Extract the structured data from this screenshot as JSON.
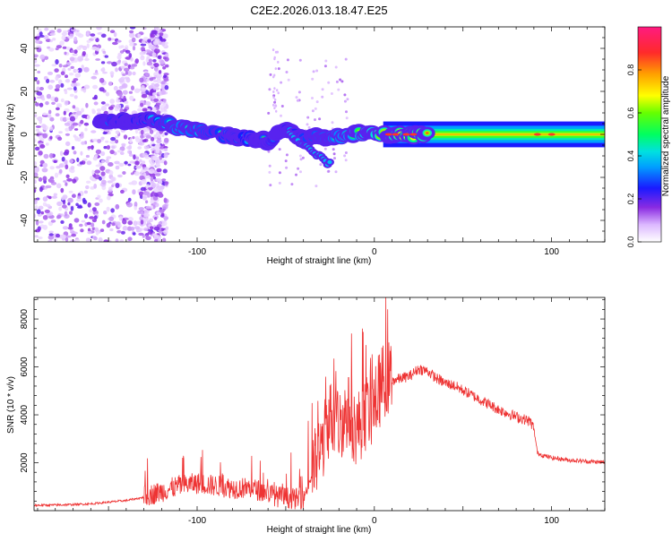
{
  "title": "C2E2.2026.013.18.47.E25",
  "chart_data": [
    {
      "type": "heatmap",
      "name": "spectrogram",
      "xlabel": "Height of straight line (km)",
      "ylabel": "Frequency (Hz)",
      "xlim": [
        -192,
        130
      ],
      "ylim": [
        -50,
        50
      ],
      "xticks": [
        -100,
        0,
        100
      ],
      "yticks": [
        -40,
        -20,
        0,
        20,
        40
      ],
      "colorbar": {
        "label": "Normalized spectral amplitude",
        "range": [
          0,
          1
        ],
        "ticks": [
          0.0,
          0.2,
          0.4,
          0.6,
          0.8
        ]
      },
      "ridge": [
        {
          "x": -150,
          "freq": 6.5,
          "amp": 0.35
        },
        {
          "x": -140,
          "freq": 6.5,
          "amp": 0.4
        },
        {
          "x": -130,
          "freq": 7.0,
          "amp": 0.4
        },
        {
          "x": -120,
          "freq": 5.5,
          "amp": 0.45
        },
        {
          "x": -110,
          "freq": 3.0,
          "amp": 0.55
        },
        {
          "x": -100,
          "freq": 2.0,
          "amp": 0.5
        },
        {
          "x": -90,
          "freq": 0.5,
          "amp": 0.45
        },
        {
          "x": -80,
          "freq": -1.0,
          "amp": 0.45
        },
        {
          "x": -70,
          "freq": -2.0,
          "amp": 0.4
        },
        {
          "x": -60,
          "freq": -3.0,
          "amp": 0.35
        },
        {
          "x": -50,
          "freq": 2.5,
          "amp": 0.4
        },
        {
          "x": -40,
          "freq": -2.0,
          "amp": 0.45
        },
        {
          "x": -30,
          "freq": -1.0,
          "amp": 0.5
        },
        {
          "x": -20,
          "freq": -1.0,
          "amp": 0.55
        },
        {
          "x": -10,
          "freq": 0.5,
          "amp": 0.6
        },
        {
          "x": 0,
          "freq": 0.5,
          "amp": 0.7
        },
        {
          "x": 10,
          "freq": 0.0,
          "amp": 0.75
        },
        {
          "x": 20,
          "freq": 0.0,
          "amp": 0.8
        },
        {
          "x": 50,
          "freq": 0.0,
          "amp": 0.6
        },
        {
          "x": 90,
          "freq": 0.0,
          "amp": 0.7
        },
        {
          "x": 130,
          "freq": 0.0,
          "amp": 0.6
        }
      ]
    },
    {
      "type": "line",
      "name": "snr",
      "xlabel": "Height of straight line (km)",
      "ylabel": "SNR (10 * v/v)",
      "xlim": [
        -192,
        130
      ],
      "ylim": [
        0,
        8900
      ],
      "xticks": [
        -100,
        0,
        100
      ],
      "yticks": [
        2000,
        4000,
        6000,
        8000
      ],
      "series": [
        {
          "name": "SNR",
          "color": "#ee3333",
          "x": [
            -192,
            -180,
            -170,
            -160,
            -150,
            -140,
            -130,
            -120,
            -110,
            -100,
            -90,
            -80,
            -70,
            -60,
            -55,
            -50,
            -45,
            -40,
            -35,
            -30,
            -25,
            -20,
            -15,
            -10,
            -5,
            0,
            5,
            10,
            15,
            20,
            25,
            30,
            35,
            40,
            45,
            50,
            60,
            70,
            80,
            88,
            90,
            92,
            95,
            100,
            110,
            120,
            130
          ],
          "values": [
            220,
            230,
            250,
            280,
            350,
            420,
            550,
            750,
            1000,
            1100,
            1000,
            900,
            900,
            700,
            550,
            500,
            450,
            480,
            1500,
            2400,
            3800,
            3400,
            4000,
            3200,
            3900,
            4200,
            5300,
            5400,
            5500,
            5600,
            5900,
            5800,
            5500,
            5300,
            5200,
            5000,
            4600,
            4200,
            3900,
            3700,
            3400,
            2400,
            2300,
            2200,
            2100,
            2050,
            2000
          ]
        }
      ]
    }
  ]
}
